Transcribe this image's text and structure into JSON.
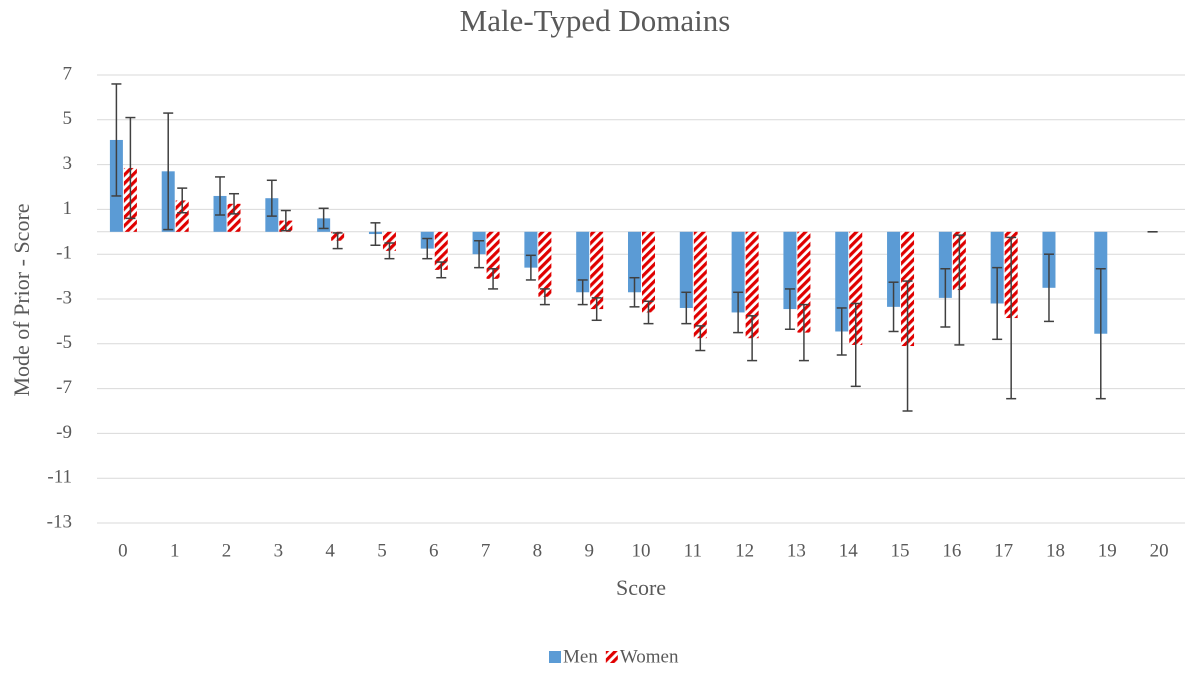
{
  "chart_data": {
    "type": "bar",
    "title": "Male-Typed Domains",
    "x_label": "Score",
    "y_label": "Mode of Prior - Score",
    "categories": [
      "0",
      "1",
      "2",
      "3",
      "4",
      "5",
      "6",
      "7",
      "8",
      "9",
      "10",
      "11",
      "12",
      "13",
      "14",
      "15",
      "16",
      "17",
      "18",
      "19",
      "20"
    ],
    "series": [
      {
        "name": "Men",
        "color": "#5b9bd5",
        "pattern": "solid",
        "values": [
          4.1,
          2.7,
          1.6,
          1.5,
          0.6,
          -0.1,
          -0.75,
          -1.0,
          -1.6,
          -2.7,
          -2.7,
          -3.4,
          -3.6,
          -3.45,
          -4.45,
          -3.35,
          -2.95,
          -3.2,
          -2.5,
          -4.55,
          0
        ],
        "errors": [
          2.5,
          2.6,
          0.85,
          0.8,
          0.45,
          0.5,
          0.45,
          0.6,
          0.55,
          0.55,
          0.65,
          0.7,
          0.9,
          0.9,
          1.05,
          1.1,
          1.3,
          1.6,
          1.5,
          2.9,
          0
        ]
      },
      {
        "name": "Women",
        "color": "#e00000",
        "pattern": "diagonal-stripes",
        "values": [
          2.85,
          1.4,
          1.25,
          0.5,
          -0.4,
          -0.85,
          -1.7,
          -2.1,
          -2.9,
          -3.45,
          -3.6,
          -4.75,
          -4.75,
          -4.5,
          -5.05,
          -5.1,
          -2.6,
          -3.85,
          null,
          null,
          null
        ],
        "errors": [
          2.25,
          0.55,
          0.45,
          0.45,
          0.35,
          0.35,
          0.35,
          0.45,
          0.35,
          0.5,
          0.5,
          0.55,
          1.0,
          1.25,
          1.85,
          2.9,
          2.45,
          3.6,
          null,
          null,
          null
        ]
      }
    ],
    "ylim": [
      -13,
      7
    ],
    "yticks": [
      -13,
      -11,
      -9,
      -7,
      -5,
      -3,
      -1,
      1,
      3,
      5,
      7
    ],
    "grid": true,
    "legend": "bottom"
  }
}
